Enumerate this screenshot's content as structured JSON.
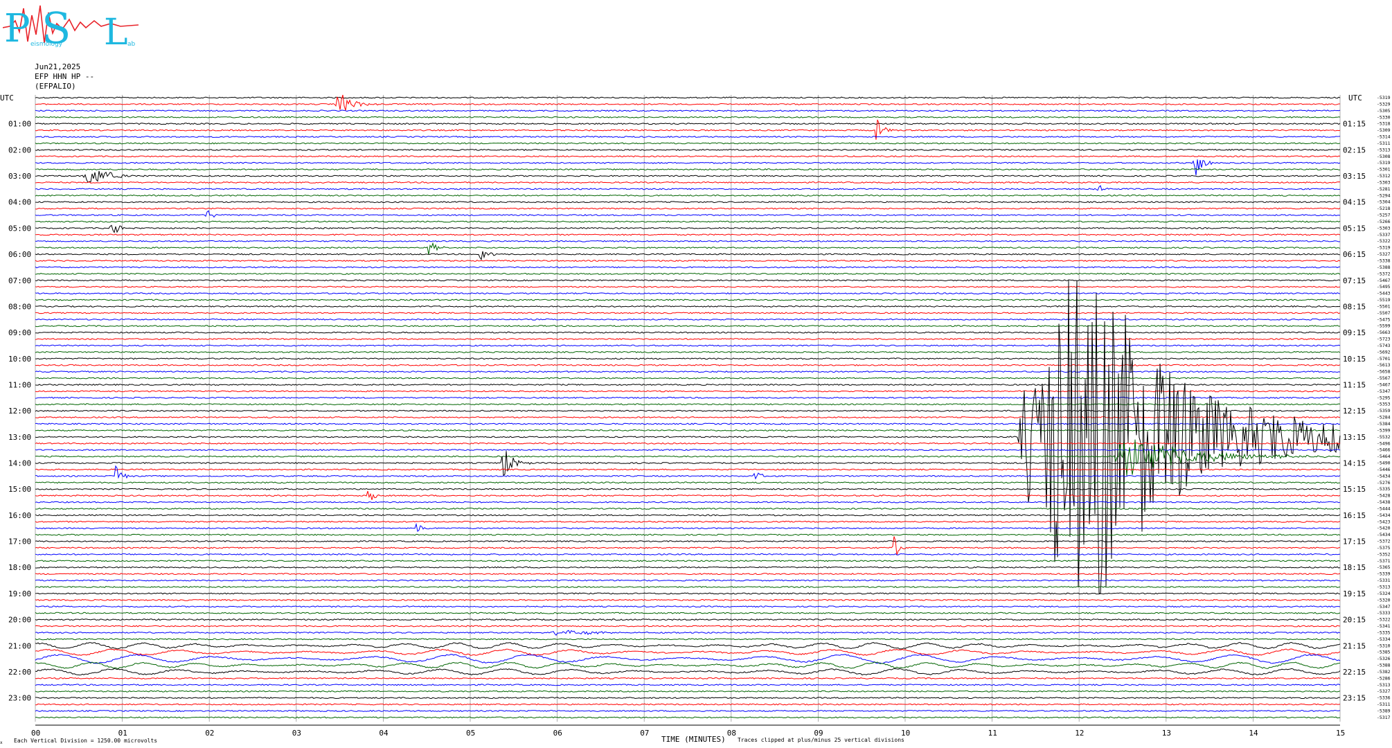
{
  "header": {
    "date": "Jun21,2025",
    "channel": "EFP HHN HP --",
    "station": "(EFPALIO)"
  },
  "logo": {
    "letters": [
      "P",
      "S",
      "L"
    ],
    "small_text": [
      "eismology",
      "ab"
    ],
    "colors": {
      "letters": "#1fb8e0",
      "trace": "#e8232a"
    }
  },
  "axes": {
    "left_title": "UTC",
    "right_title": "UTC",
    "xlabel": "TIME (MINUTES)",
    "x_ticks": [
      "00",
      "01",
      "02",
      "03",
      "04",
      "05",
      "06",
      "07",
      "08",
      "09",
      "10",
      "11",
      "12",
      "13",
      "14",
      "15"
    ],
    "left_hours": [
      "01:00",
      "02:00",
      "03:00",
      "04:00",
      "05:00",
      "06:00",
      "07:00",
      "08:00",
      "09:00",
      "10:00",
      "11:00",
      "12:00",
      "13:00",
      "14:00",
      "15:00",
      "16:00",
      "17:00",
      "18:00",
      "19:00",
      "20:00",
      "21:00",
      "22:00",
      "23:00"
    ],
    "right_hours": [
      "01:15",
      "02:15",
      "03:15",
      "04:15",
      "05:15",
      "06:15",
      "07:15",
      "08:15",
      "09:15",
      "10:15",
      "11:15",
      "12:15",
      "13:15",
      "14:15",
      "15:15",
      "16:15",
      "17:15",
      "18:15",
      "19:15",
      "20:15",
      "21:15",
      "22:15",
      "23:15"
    ]
  },
  "footer": {
    "left_note": "Each Vertical Division = 1250.00 microvolts",
    "right_note": "Traces clipped at plus/minus 25 vertical divisions",
    "corner_mark": "x"
  },
  "chart_data": {
    "type": "line",
    "title": "",
    "trace_count": 96,
    "trace_colors": [
      "#000000",
      "#ff0000",
      "#0000ff",
      "#006400"
    ],
    "x_range_minutes": [
      0,
      15
    ],
    "trace_offsets_first": "-5319",
    "trace_offsets": [
      "-5329",
      "-5305",
      "-5330",
      "-5318",
      "-5309",
      "-5314",
      "-5311",
      "-5313",
      "-5308",
      "-5319",
      "-5301",
      "-5312",
      "-5303",
      "-5281",
      "-5294",
      "-5304",
      "-5218",
      "-5257",
      "-5266",
      "-5303",
      "-5337",
      "-5322",
      "-5319",
      "-5327",
      "-5338",
      "-5388",
      "-5372",
      "-5467",
      "-5495",
      "-5443",
      "-5519",
      "-5501",
      "-5507",
      "-5475",
      "-5599",
      "-5663",
      "-5723",
      "-5743",
      "-5692",
      "-5701",
      "-5613",
      "-5658",
      "-5567",
      "-5467",
      "-5347",
      "-5295",
      "-5353",
      "-5359",
      "-5284",
      "-5384",
      "-5399",
      "-5532",
      "-5496",
      "-5466",
      "-5464",
      "-5490",
      "-5446",
      "-5434",
      "-5276",
      "-5335",
      "-5428",
      "-5438",
      "-5444",
      "-5434",
      "-5423",
      "-5420",
      "-5434",
      "-5372",
      "-5375",
      "-5352",
      "-5371",
      "-5365",
      "-5339",
      "-5331",
      "-5313",
      "-5324",
      "-5320",
      "-5347",
      "-5333",
      "-5322",
      "-5341",
      "-5335",
      "-5334",
      "-5310",
      "-5385",
      "-5326",
      "-5388",
      "-5382",
      "-5286",
      "-5313",
      "-5327",
      "-5336",
      "-5311",
      "-5389",
      "-5317"
    ],
    "events": [
      {
        "trace": 1,
        "minute": 3.45,
        "amp": 2.2,
        "dur": 0.5
      },
      {
        "trace": 5,
        "minute": 9.65,
        "amp": 2.4,
        "dur": 0.3
      },
      {
        "trace": 10,
        "minute": 13.3,
        "amp": 2.8,
        "dur": 0.3
      },
      {
        "trace": 12,
        "minute": 0.55,
        "amp": 1.8,
        "dur": 0.8
      },
      {
        "trace": 14,
        "minute": 12.2,
        "amp": 1.3,
        "dur": 0.2
      },
      {
        "trace": 18,
        "minute": 1.95,
        "amp": 0.9,
        "dur": 0.3
      },
      {
        "trace": 20,
        "minute": 0.85,
        "amp": 1.5,
        "dur": 0.3
      },
      {
        "trace": 23,
        "minute": 4.5,
        "amp": 1.6,
        "dur": 0.25
      },
      {
        "trace": 24,
        "minute": 5.1,
        "amp": 1.8,
        "dur": 0.25
      },
      {
        "trace": 52,
        "minute": 11.3,
        "amp": 5.5,
        "dur": 3.7
      },
      {
        "trace": 56,
        "minute": 5.35,
        "amp": 2.6,
        "dur": 0.4
      },
      {
        "trace": 55,
        "minute": 12.35,
        "amp": 3.2,
        "dur": 2.6
      },
      {
        "trace": 58,
        "minute": 0.9,
        "amp": 1.8,
        "dur": 0.25
      },
      {
        "trace": 58,
        "minute": 8.25,
        "amp": 1.4,
        "dur": 0.2
      },
      {
        "trace": 61,
        "minute": 3.8,
        "amp": 2.6,
        "dur": 0.2
      },
      {
        "trace": 66,
        "minute": 4.35,
        "amp": 1.5,
        "dur": 0.2
      },
      {
        "trace": 69,
        "minute": 9.85,
        "amp": 2.8,
        "dur": 0.2
      },
      {
        "trace": 82,
        "minute": 5.9,
        "amp": 0.5,
        "dur": 1.4
      }
    ],
    "big_event": {
      "trace": 52,
      "minute": 11.3,
      "clip_top_trace": 28,
      "clip_bottom_trace": 76
    }
  }
}
